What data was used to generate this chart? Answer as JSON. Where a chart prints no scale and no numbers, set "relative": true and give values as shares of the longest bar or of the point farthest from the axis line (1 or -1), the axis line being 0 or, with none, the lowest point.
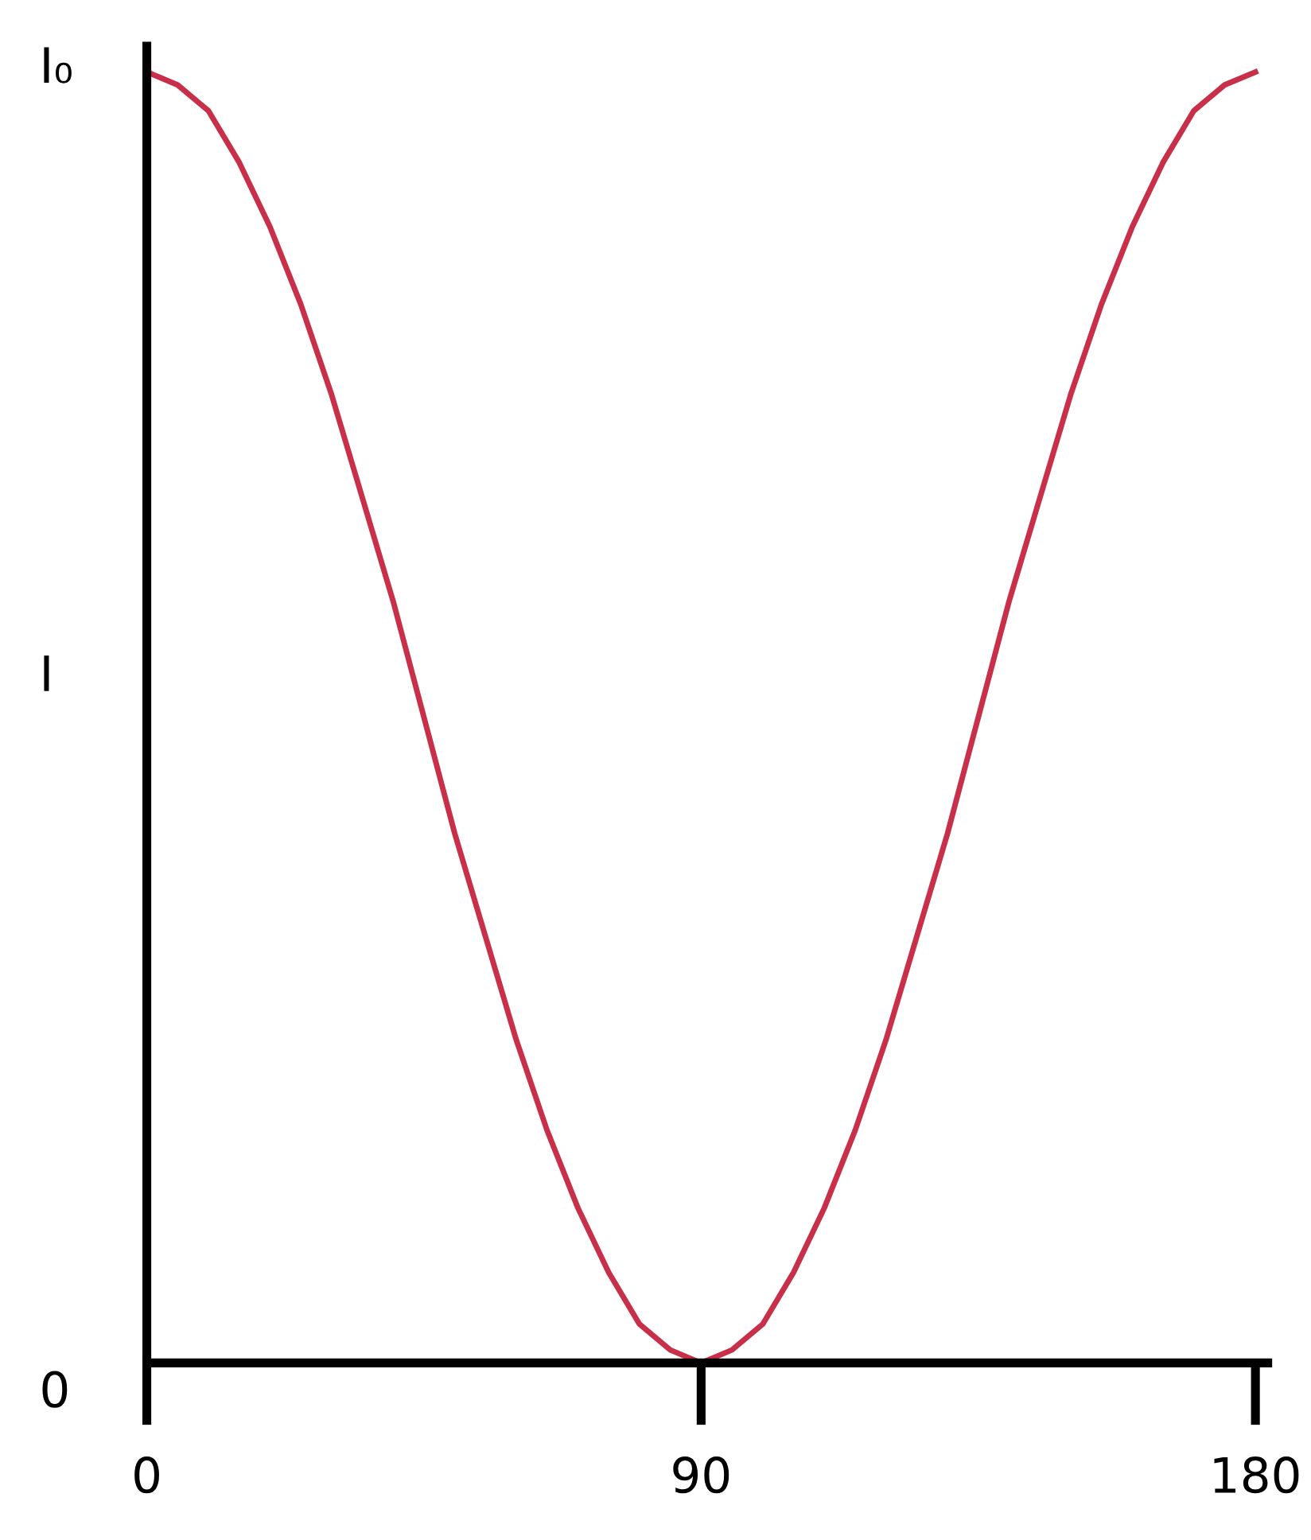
{
  "chart_data": {
    "type": "line",
    "x": [
      0,
      5,
      10,
      15,
      20,
      25,
      30,
      35,
      40,
      45,
      50,
      55,
      60,
      65,
      70,
      75,
      80,
      85,
      90,
      95,
      100,
      105,
      110,
      115,
      120,
      125,
      130,
      135,
      140,
      145,
      150,
      155,
      160,
      165,
      170,
      175,
      180
    ],
    "series": [
      {
        "color": "#c8304a",
        "values": [
          1,
          0.99,
          0.97,
          0.93,
          0.88,
          0.82,
          0.75,
          0.67,
          0.59,
          0.5,
          0.41,
          0.33,
          0.25,
          0.18,
          0.12,
          0.07,
          0.03,
          0.01,
          0,
          0.01,
          0.03,
          0.07,
          0.12,
          0.18,
          0.25,
          0.33,
          0.41,
          0.5,
          0.59,
          0.67,
          0.75,
          0.82,
          0.88,
          0.93,
          0.97,
          0.99,
          1
        ]
      }
    ],
    "xlim": [
      0,
      182
    ],
    "xticks": [
      0,
      90,
      180
    ],
    "relative": true,
    "annotations": [
      "I₀",
      "I",
      "0"
    ],
    "grid": false,
    "marker": "none",
    "line_style": "solid"
  }
}
